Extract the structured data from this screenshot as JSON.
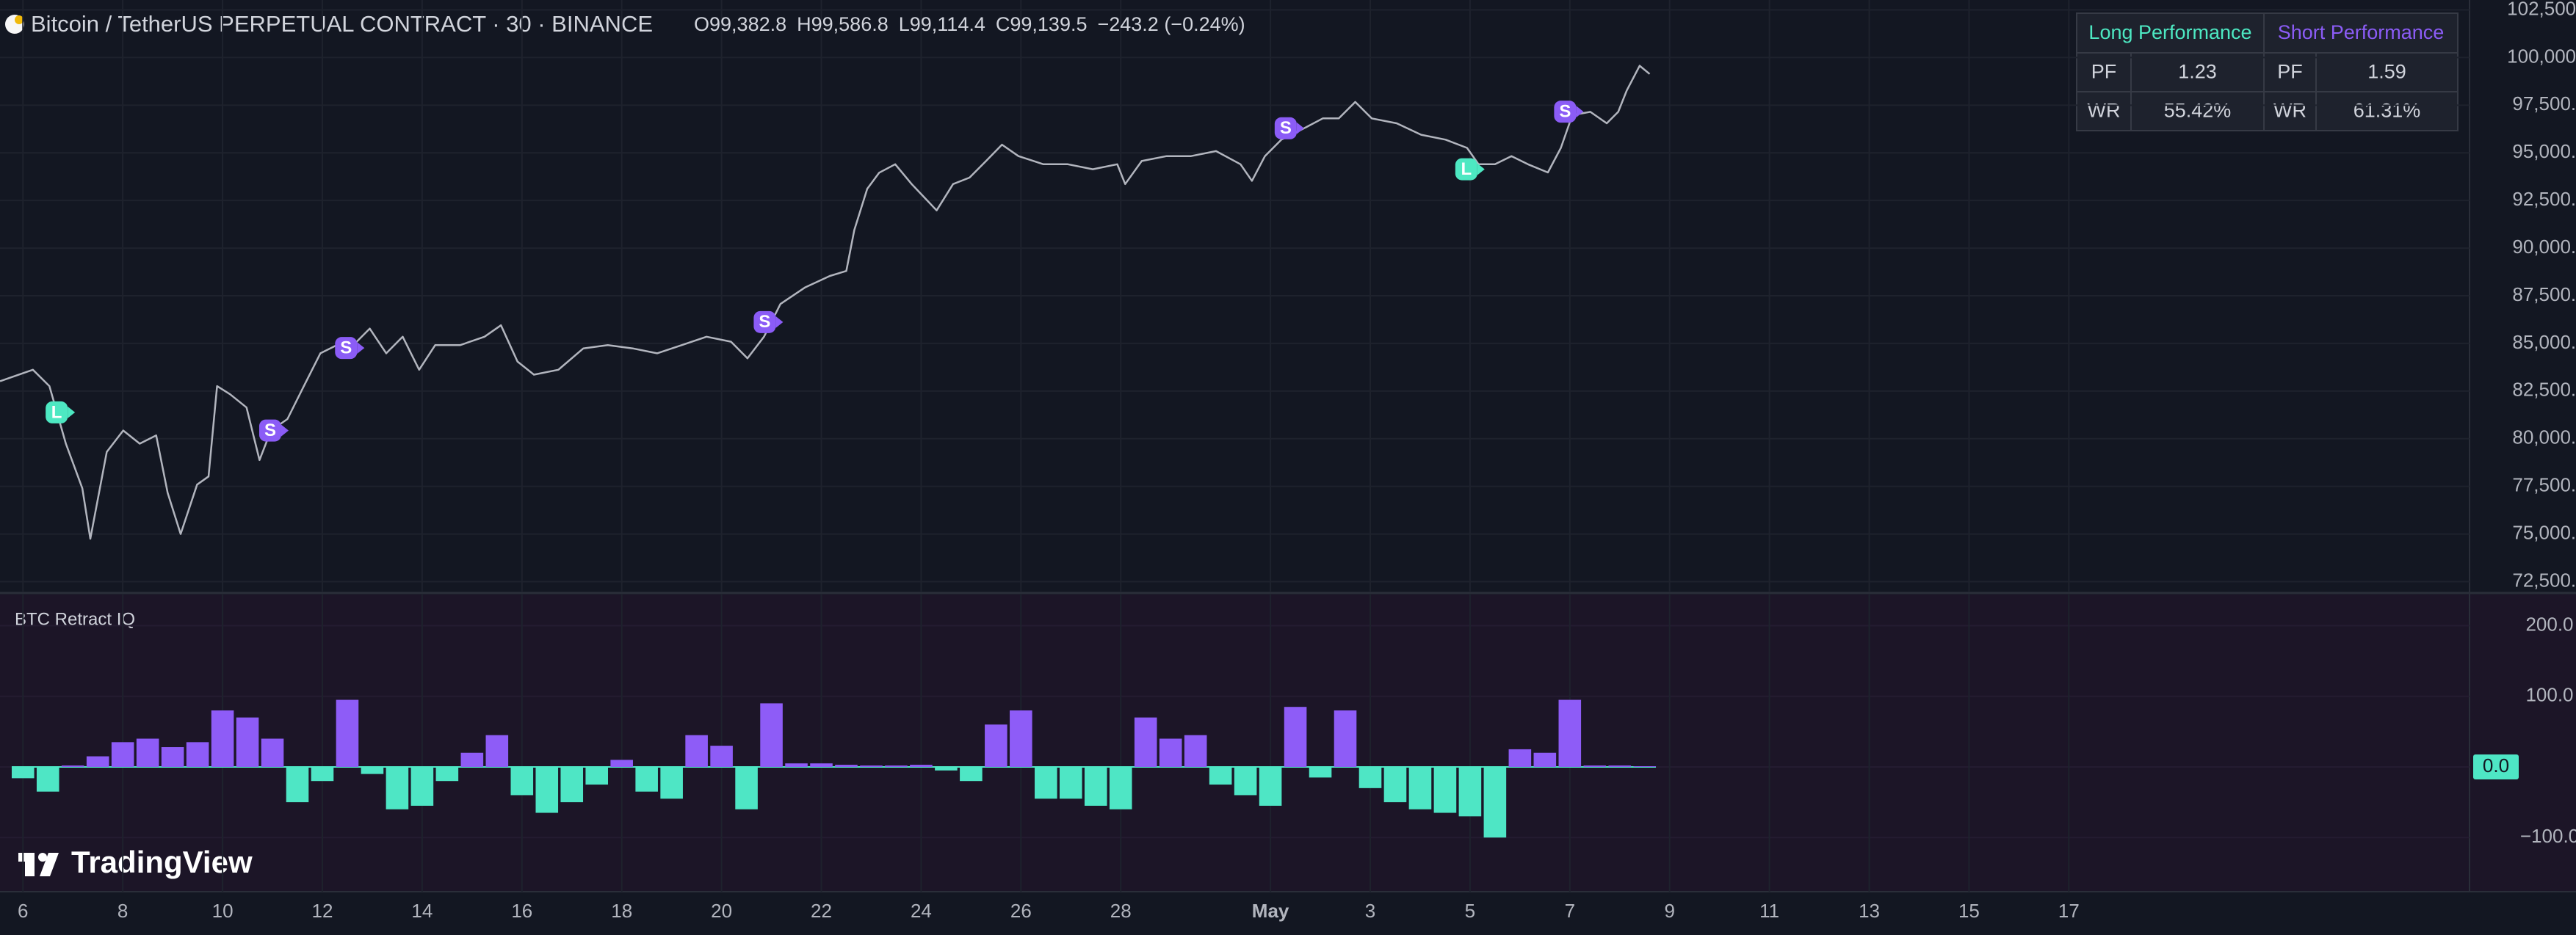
{
  "chart_data": [
    {
      "type": "line",
      "title": "Bitcoin / TetherUS PERPETUAL CONTRACT · 30 · BINANCE",
      "ohlc": [
        {
          "key": "O",
          "value": "99,382.8"
        },
        {
          "key": "H",
          "value": "99,586.8"
        },
        {
          "key": "L",
          "value": "99,114.4"
        },
        {
          "key": "C",
          "value": "99,139.5"
        }
      ],
      "change": "−243.2 (−0.24%)",
      "color": "#b2b5be",
      "grid": true,
      "x": [
        -0.46,
        0.2,
        0.53,
        0.86,
        1.19,
        1.35,
        1.68,
        2.01,
        2.34,
        2.67,
        2.9,
        3.16,
        3.49,
        3.72,
        3.89,
        4.15,
        4.48,
        4.74,
        4.97,
        5.3,
        5.63,
        5.96,
        6.29,
        6.62,
        6.95,
        7.28,
        7.61,
        7.94,
        8.26,
        8.76,
        9.25,
        9.58,
        9.91,
        10.24,
        10.73,
        11.23,
        11.72,
        12.22,
        12.71,
        13.2,
        13.7,
        14.19,
        14.52,
        14.85,
        15.18,
        15.67,
        16.17,
        16.5,
        16.66,
        16.92,
        17.16,
        17.48,
        17.81,
        18.31,
        18.64,
        18.97,
        19.3,
        19.62,
        19.95,
        20.45,
        20.94,
        21.44,
        21.93,
        22.09,
        22.42,
        22.92,
        23.41,
        23.91,
        24.4,
        24.63,
        24.89,
        25.22,
        25.55,
        26.05,
        26.37,
        26.7,
        27.03,
        27.53,
        28.02,
        28.51,
        28.94,
        29.17,
        29.5,
        29.83,
        30.16,
        30.56,
        30.82,
        31.05,
        31.41,
        31.74,
        31.97,
        32.14,
        32.4,
        32.6
      ],
      "values": [
        83017,
        83620,
        82760,
        79740,
        77400,
        74750,
        79310,
        80430,
        79740,
        80170,
        77160,
        75000,
        77590,
        78020,
        82760,
        82330,
        81640,
        78880,
        80430,
        81030,
        82760,
        84480,
        84910,
        84910,
        85780,
        84480,
        85350,
        83620,
        84910,
        84910,
        85350,
        85950,
        84050,
        83360,
        83620,
        84740,
        84910,
        84740,
        84480,
        84910,
        85350,
        85090,
        84220,
        85350,
        87070,
        87930,
        88540,
        88800,
        90950,
        93110,
        93960,
        94400,
        93360,
        91980,
        93360,
        93700,
        94570,
        95430,
        94830,
        94400,
        94400,
        94140,
        94400,
        93360,
        94570,
        94830,
        94830,
        95090,
        94400,
        93530,
        94830,
        95690,
        96120,
        96810,
        96810,
        97670,
        96810,
        96550,
        95950,
        95690,
        95260,
        94400,
        94400,
        94830,
        94400,
        93970,
        95260,
        96980,
        97150,
        96550,
        97150,
        98270,
        99570,
        99140
      ],
      "signals": [
        {
          "label": "L",
          "x": 0.69,
          "y": 81380,
          "color": "#4de8c2"
        },
        {
          "label": "S",
          "x": 4.97,
          "y": 80430,
          "color": "#8b5cf6"
        },
        {
          "label": "S",
          "x": 6.49,
          "y": 84760,
          "color": "#8b5cf6"
        },
        {
          "label": "S",
          "x": 14.88,
          "y": 86120,
          "color": "#8b5cf6"
        },
        {
          "label": "S",
          "x": 25.32,
          "y": 96290,
          "color": "#8b5cf6"
        },
        {
          "label": "L",
          "x": 28.94,
          "y": 94140,
          "color": "#4de8c2"
        },
        {
          "label": "S",
          "x": 30.92,
          "y": 97160,
          "color": "#8b5cf6"
        }
      ],
      "xlim": [
        -0.46,
        49.03
      ],
      "ylim": [
        71980,
        103020
      ],
      "yticks": [
        {
          "value": 72500,
          "label": "72,500.0"
        },
        {
          "value": 75000,
          "label": "75,000.0"
        },
        {
          "value": 77500,
          "label": "77,500.0"
        },
        {
          "value": 80000,
          "label": "80,000.0"
        },
        {
          "value": 82500,
          "label": "82,500.0"
        },
        {
          "value": 85000,
          "label": "85,000.0"
        },
        {
          "value": 87500,
          "label": "87,500.0"
        },
        {
          "value": 90000,
          "label": "90,000.0"
        },
        {
          "value": 92500,
          "label": "92,500.0"
        },
        {
          "value": 95000,
          "label": "95,000.0"
        },
        {
          "value": 97500,
          "label": "97,500.0"
        },
        {
          "value": 100000,
          "label": "100,000.0"
        },
        {
          "value": 102500,
          "label": "102,500.0"
        }
      ]
    },
    {
      "type": "bar",
      "title": "BTC Retract IQ",
      "watermark": "TradingView",
      "colors": {
        "positive": "#8e5cf7",
        "negative": "#4ee6c5"
      },
      "grid": true,
      "x": [
        0,
        0.5,
        1,
        1.5,
        2,
        2.5,
        3,
        3.5,
        4,
        4.5,
        5,
        5.5,
        6,
        6.5,
        7,
        7.5,
        8,
        8.5,
        9,
        9.5,
        10,
        10.5,
        11,
        11.5,
        12,
        12.5,
        13,
        13.5,
        14,
        14.5,
        15,
        15.5,
        16,
        16.5,
        17,
        17.5,
        18,
        18.5,
        19,
        19.5,
        20,
        20.5,
        21,
        21.5,
        22,
        22.5,
        23,
        23.5,
        24,
        24.5,
        25,
        25.5,
        26,
        26.5,
        27,
        27.5,
        28,
        28.5,
        29,
        29.5,
        30,
        30.5,
        31,
        31.5,
        32,
        32.5
      ],
      "values": [
        -16,
        -35,
        2,
        15,
        35,
        40,
        28,
        35,
        80,
        70,
        40,
        -50,
        -20,
        95,
        -10,
        -60,
        -55,
        -20,
        20,
        45,
        -40,
        -65,
        -50,
        -25,
        10,
        -35,
        -45,
        45,
        30,
        -60,
        90,
        5,
        5,
        3,
        2,
        2,
        3,
        -5,
        -20,
        60,
        80,
        -45,
        -45,
        -55,
        -60,
        70,
        40,
        45,
        -25,
        -40,
        -55,
        85,
        -15,
        80,
        -30,
        -50,
        -60,
        -65,
        -70,
        -100,
        25,
        20,
        95,
        2,
        2,
        1
      ],
      "xlim": [
        -0.46,
        49.03
      ],
      "ylim": [
        -176.7,
        244.2
      ],
      "yticks": [
        {
          "value": -100,
          "label": "−100.0"
        },
        {
          "value": 0,
          "label": "0.0"
        },
        {
          "value": 100,
          "label": "100.0"
        },
        {
          "value": 200,
          "label": "200.0"
        }
      ],
      "xticks": [
        {
          "value": 0,
          "label": "6"
        },
        {
          "value": 2,
          "label": "8"
        },
        {
          "value": 4,
          "label": "10"
        },
        {
          "value": 6,
          "label": "12"
        },
        {
          "value": 8,
          "label": "14"
        },
        {
          "value": 10,
          "label": "16"
        },
        {
          "value": 12,
          "label": "18"
        },
        {
          "value": 14,
          "label": "20"
        },
        {
          "value": 16,
          "label": "22"
        },
        {
          "value": 18,
          "label": "24"
        },
        {
          "value": 20,
          "label": "26"
        },
        {
          "value": 22,
          "label": "28"
        },
        {
          "value": 25,
          "label": "May"
        },
        {
          "value": 27,
          "label": "3"
        },
        {
          "value": 29,
          "label": "5"
        },
        {
          "value": 31,
          "label": "7"
        },
        {
          "value": 33,
          "label": "9"
        },
        {
          "value": 35,
          "label": "11"
        },
        {
          "value": 37,
          "label": "13"
        },
        {
          "value": 39,
          "label": "15"
        },
        {
          "value": 41,
          "label": "17"
        }
      ]
    }
  ],
  "table": {
    "headers": [
      "Long Performance",
      "Short Performance"
    ],
    "rows": [
      [
        "PF",
        "1.23",
        "PF",
        "1.59"
      ],
      [
        "WR",
        "55.42%",
        "WR",
        "61.31%"
      ]
    ]
  }
}
